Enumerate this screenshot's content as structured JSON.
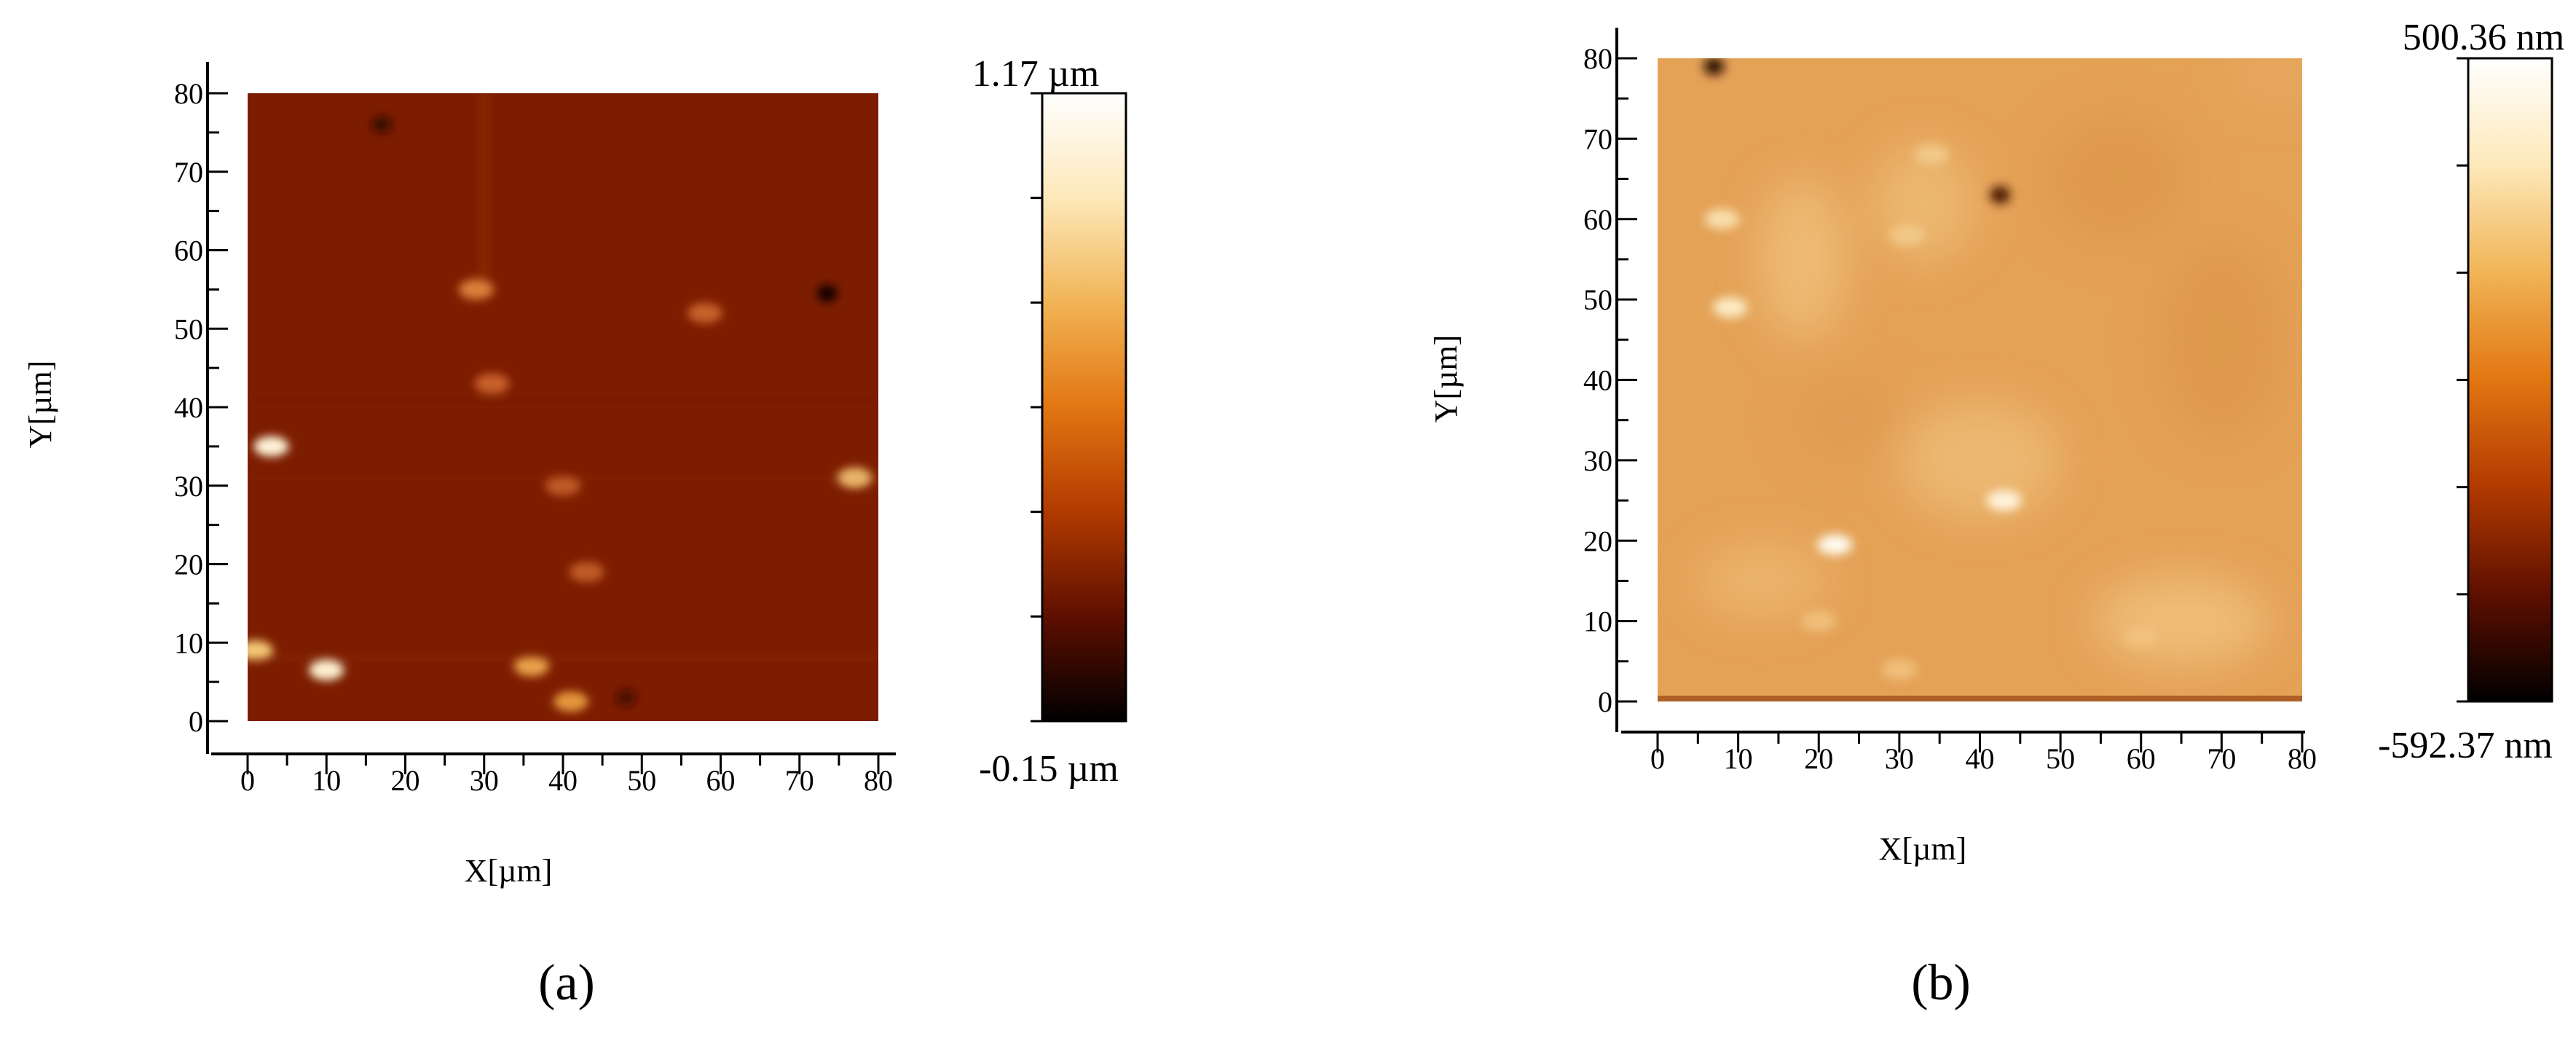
{
  "figure": {
    "panel_labels": [
      "(a)",
      "(b)"
    ]
  },
  "chart_data": [
    {
      "type": "heatmap",
      "panel": "(a)",
      "xlabel": "X[µm]",
      "ylabel": "Y[µm]",
      "xlim": [
        0,
        80
      ],
      "ylim": [
        0,
        80
      ],
      "xticks": [
        0,
        10,
        20,
        30,
        40,
        50,
        60,
        70,
        80
      ],
      "yticks": [
        0,
        10,
        20,
        30,
        40,
        50,
        60,
        70,
        80
      ],
      "grid": false,
      "colorbar": {
        "max_label": "1.17 µm",
        "min_label": "-0.15 µm",
        "max": 1.17,
        "min": -0.15,
        "unit": "µm",
        "colors": [
          "#000000",
          "#5e0f00",
          "#b23a00",
          "#e27612",
          "#f1b456",
          "#fde8b9",
          "#ffffff"
        ]
      },
      "base_color": "#7d1d00",
      "features": [
        {
          "kind": "blob",
          "x": 3,
          "y": 35,
          "value": 1.17,
          "color": "#fdf3d8"
        },
        {
          "kind": "blob",
          "x": 10,
          "y": 6.5,
          "value": 1.1,
          "color": "#fdf0d0"
        },
        {
          "kind": "blob",
          "x": 1,
          "y": 9,
          "value": 0.9,
          "color": "#f5c776"
        },
        {
          "kind": "blob",
          "x": 36,
          "y": 7,
          "value": 0.8,
          "color": "#e9a24c"
        },
        {
          "kind": "blob",
          "x": 41,
          "y": 2.5,
          "value": 0.75,
          "color": "#e4963e"
        },
        {
          "kind": "blob",
          "x": 77,
          "y": 31,
          "value": 0.9,
          "color": "#f1c070"
        },
        {
          "kind": "blob",
          "x": 29,
          "y": 55,
          "value": 0.7,
          "color": "#d9803a"
        },
        {
          "kind": "blob",
          "x": 31,
          "y": 43,
          "value": 0.6,
          "color": "#c8612a"
        },
        {
          "kind": "blob",
          "x": 58,
          "y": 52,
          "value": 0.6,
          "color": "#c8612a"
        },
        {
          "kind": "blob",
          "x": 43,
          "y": 19,
          "value": 0.55,
          "color": "#bf5a26"
        },
        {
          "kind": "blob",
          "x": 40,
          "y": 30,
          "value": 0.55,
          "color": "#bf5a26"
        },
        {
          "kind": "blob",
          "x": 73.5,
          "y": 54.5,
          "value": -0.15,
          "color": "#120200"
        },
        {
          "kind": "blob",
          "x": 17,
          "y": 76,
          "value": -0.05,
          "color": "#3a0800"
        },
        {
          "kind": "blob",
          "x": 48,
          "y": 3,
          "value": 0.0,
          "color": "#4d0b00"
        }
      ]
    },
    {
      "type": "heatmap",
      "panel": "(b)",
      "xlabel": "X[µm]",
      "ylabel": "Y[µm]",
      "xlim": [
        0,
        80
      ],
      "ylim": [
        0,
        80
      ],
      "xticks": [
        0,
        10,
        20,
        30,
        40,
        50,
        60,
        70,
        80
      ],
      "yticks": [
        0,
        10,
        20,
        30,
        40,
        50,
        60,
        70,
        80
      ],
      "grid": false,
      "colorbar": {
        "max_label": "500.36 nm",
        "min_label": "-592.37 nm",
        "max": 500.36,
        "min": -592.37,
        "unit": "nm",
        "colors": [
          "#000000",
          "#5e0f00",
          "#b23a00",
          "#e27612",
          "#f1b456",
          "#fde8b9",
          "#ffffff"
        ]
      },
      "base_color": "#e4a257",
      "features": [
        {
          "kind": "blob",
          "x": 22,
          "y": 19.5,
          "value": 500,
          "color": "#fffbf0"
        },
        {
          "kind": "blob",
          "x": 43,
          "y": 25,
          "value": 420,
          "color": "#fff4dc"
        },
        {
          "kind": "blob",
          "x": 9,
          "y": 49,
          "value": 380,
          "color": "#fcebc6"
        },
        {
          "kind": "blob",
          "x": 8,
          "y": 60,
          "value": 320,
          "color": "#f9dfae"
        },
        {
          "kind": "blob",
          "x": 31,
          "y": 58,
          "value": 250,
          "color": "#f3c98a"
        },
        {
          "kind": "blob",
          "x": 34,
          "y": 68,
          "value": 250,
          "color": "#f3c98a"
        },
        {
          "kind": "blob",
          "x": 42.5,
          "y": 63,
          "value": -450,
          "color": "#4a1400"
        },
        {
          "kind": "blob",
          "x": 7,
          "y": 79,
          "value": -592,
          "color": "#2a0a00"
        },
        {
          "kind": "blob",
          "x": 30,
          "y": 4,
          "value": 150,
          "color": "#f0c07c"
        },
        {
          "kind": "blob",
          "x": 60,
          "y": 8,
          "value": 160,
          "color": "#f1c27f"
        },
        {
          "kind": "blob",
          "x": 20,
          "y": 10,
          "value": 170,
          "color": "#f0c07c"
        }
      ]
    }
  ]
}
